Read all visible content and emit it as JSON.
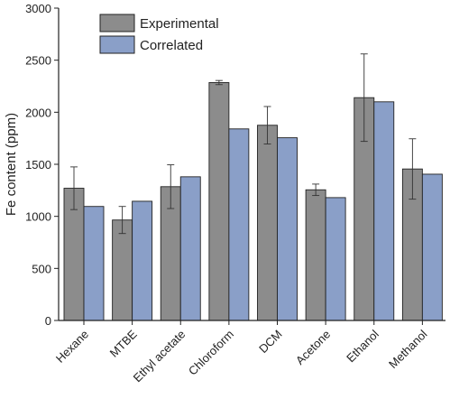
{
  "chart_data": {
    "type": "bar",
    "title": "",
    "xlabel": "",
    "ylabel": "Fe content (ppm)",
    "ylim": [
      0,
      3000
    ],
    "yticks": [
      0,
      500,
      1000,
      1500,
      2000,
      2500,
      3000
    ],
    "grid": false,
    "legend_position": "top-left",
    "categories": [
      "Hexane",
      "MTBE",
      "Ethyl acetate",
      "Chloroform",
      "DCM",
      "Acetone",
      "Ethanol",
      "Methanol"
    ],
    "series": [
      {
        "name": "Experimental",
        "color": "#8c8c8c",
        "values": [
          1270,
          965,
          1285,
          2285,
          1875,
          1255,
          2140,
          1455
        ],
        "error": [
          205,
          130,
          210,
          20,
          180,
          55,
          420,
          290
        ]
      },
      {
        "name": "Correlated",
        "color": "#8a9fc8",
        "values": [
          1095,
          1145,
          1380,
          1840,
          1755,
          1180,
          2100,
          1405
        ]
      }
    ]
  }
}
